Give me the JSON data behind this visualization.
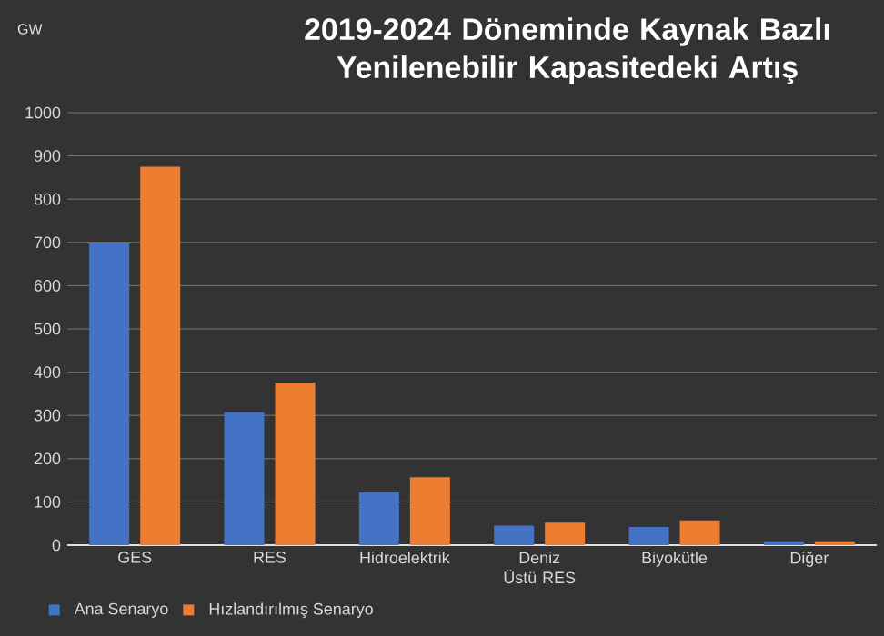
{
  "chart_data": {
    "type": "bar",
    "title": "2019-2024 Döneminde Kaynak Bazlı Yenilenebilir Kapasitedeki Artış",
    "annotations": [
      "GW"
    ],
    "categories": [
      "GES",
      "RES",
      "Hidroelektrik",
      "Deniz Üstü RES",
      "Biyokütle",
      "Diğer"
    ],
    "series": [
      {
        "name": "Ana Senaryo",
        "color": "#4472c4",
        "values": [
          698,
          307,
          122,
          45,
          42,
          9
        ]
      },
      {
        "name": "Hızlandırılmış Senaryo",
        "color": "#ed7d31",
        "values": [
          875,
          376,
          157,
          52,
          57,
          9
        ]
      }
    ],
    "ylim": [
      0,
      1000
    ],
    "yticks": [
      0,
      100,
      200,
      300,
      400,
      500,
      600,
      700,
      800,
      900,
      1000
    ],
    "grid": "y",
    "legend": "bottom left"
  }
}
